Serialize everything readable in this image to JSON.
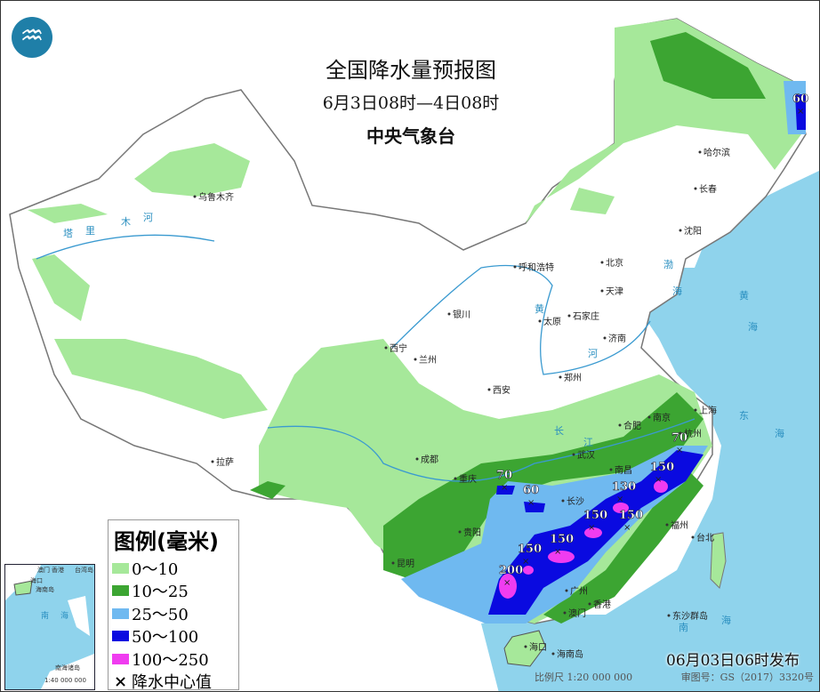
{
  "header": {
    "title": "全国降水量预报图",
    "period": "6月3日08时—4日08时",
    "issuer": "中央气象台",
    "logo_icon": "cma-logo-icon"
  },
  "legend": {
    "title": "图例(毫米)",
    "items": [
      {
        "label": "0～10",
        "color": "#a6e89a"
      },
      {
        "label": "10～25",
        "color": "#3ca532"
      },
      {
        "label": "25～50",
        "color": "#6fb9f0"
      },
      {
        "label": "50～100",
        "color": "#0a0ae0"
      },
      {
        "label": "100～250",
        "color": "#f03cf0"
      }
    ],
    "center_marker": {
      "symbol": "×",
      "label": "降水中心值"
    }
  },
  "cities": [
    "乌鲁木齐",
    "哈尔滨",
    "长春",
    "沈阳",
    "呼和浩特",
    "北京",
    "天津",
    "银川",
    "太原",
    "石家庄",
    "济南",
    "西宁",
    "兰州",
    "西安",
    "郑州",
    "合肥",
    "南京",
    "上海",
    "杭州",
    "拉萨",
    "成都",
    "重庆",
    "武汉",
    "南昌",
    "长沙",
    "贵阳",
    "昆明",
    "福州",
    "台北",
    "广州",
    "香港",
    "澳门",
    "海口",
    "海南岛",
    "东沙群岛"
  ],
  "seas": [
    "渤",
    "海",
    "黄",
    "海",
    "东",
    "海",
    "南",
    "海"
  ],
  "rivers": [
    "塔",
    "里",
    "木",
    "河",
    "黄",
    "河",
    "长",
    "江"
  ],
  "rain_centers": [
    "60",
    "70",
    "60",
    "130",
    "150",
    "150",
    "150",
    "150",
    "200",
    "70",
    "150"
  ],
  "inset": {
    "labels": [
      "澳门",
      "香港",
      "台湾岛",
      "海口",
      "海南岛",
      "南",
      "海",
      "南海诸岛"
    ],
    "scale": "1:40 000 000"
  },
  "footer": {
    "issued": "06月03日06时发布",
    "scale": "比例尺 1:20 000 000",
    "review_no": "审图号：GS（2017）3320号"
  },
  "colors": {
    "ocean": "#8fd3ec",
    "land": "#ffffff"
  }
}
